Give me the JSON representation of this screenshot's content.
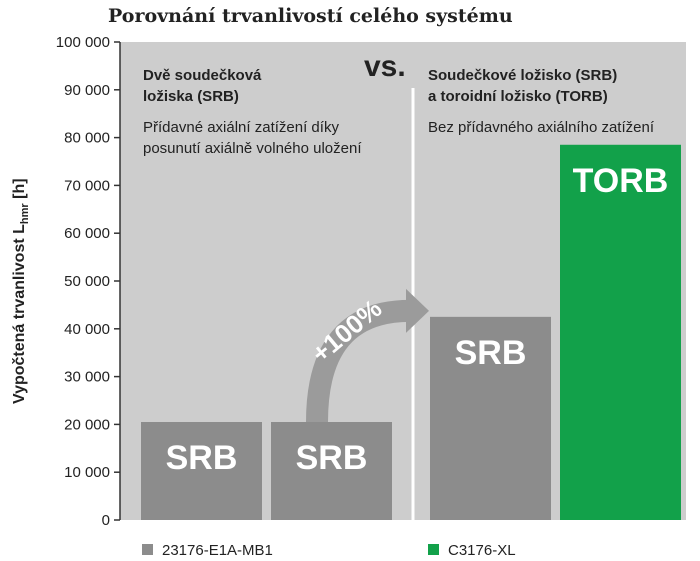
{
  "chart_data": {
    "type": "bar",
    "title": "Porovnání trvanlivostí celého systému",
    "ylabel": "Vypočtená trvanlivost L",
    "ylabel_sub": "hmr",
    "ylabel_unit": "[h]",
    "ylim": [
      0,
      100000
    ],
    "yticks": [
      "0",
      "10 000",
      "20 000",
      "30 000",
      "40 000",
      "50 000",
      "60 000",
      "70 000",
      "80 000",
      "90 000",
      "100 000"
    ],
    "grid": false,
    "bars": [
      {
        "label": "SRB",
        "value": 20500,
        "series": "23176-E1A-MB1",
        "panel": "left"
      },
      {
        "label": "SRB",
        "value": 20500,
        "series": "23176-E1A-MB1",
        "panel": "left"
      },
      {
        "label": "SRB",
        "value": 42500,
        "series": "23176-E1A-MB1",
        "panel": "right"
      },
      {
        "label": "TORB",
        "value": 78500,
        "series": "C3176-XL",
        "panel": "right"
      }
    ],
    "panels": {
      "left": {
        "heading": [
          "Dvě soudečková",
          "ložiska (SRB)"
        ],
        "text": [
          "Přídavné axiální zatížení díky",
          "posunutí axiálně volného uložení"
        ]
      },
      "right": {
        "heading": [
          "Soudečkové ložisko (SRB)",
          "a toroidní ložisko (TORB)"
        ],
        "text": [
          "Bez přídavného axiálního zatížení"
        ]
      }
    },
    "separator": "vs.",
    "annotation": "+100%",
    "legend": {
      "position": "bottom",
      "items": [
        {
          "name": "23176-E1A-MB1",
          "color": "#8c8c8c"
        },
        {
          "name": "C3176-XL",
          "color": "#12a14a"
        }
      ]
    }
  },
  "colors": {
    "panel_bg": "#cdcdcd",
    "bar_gray": "#8c8c8c",
    "bar_green": "#12a14a",
    "arrow_gray": "#9b9b9b"
  }
}
